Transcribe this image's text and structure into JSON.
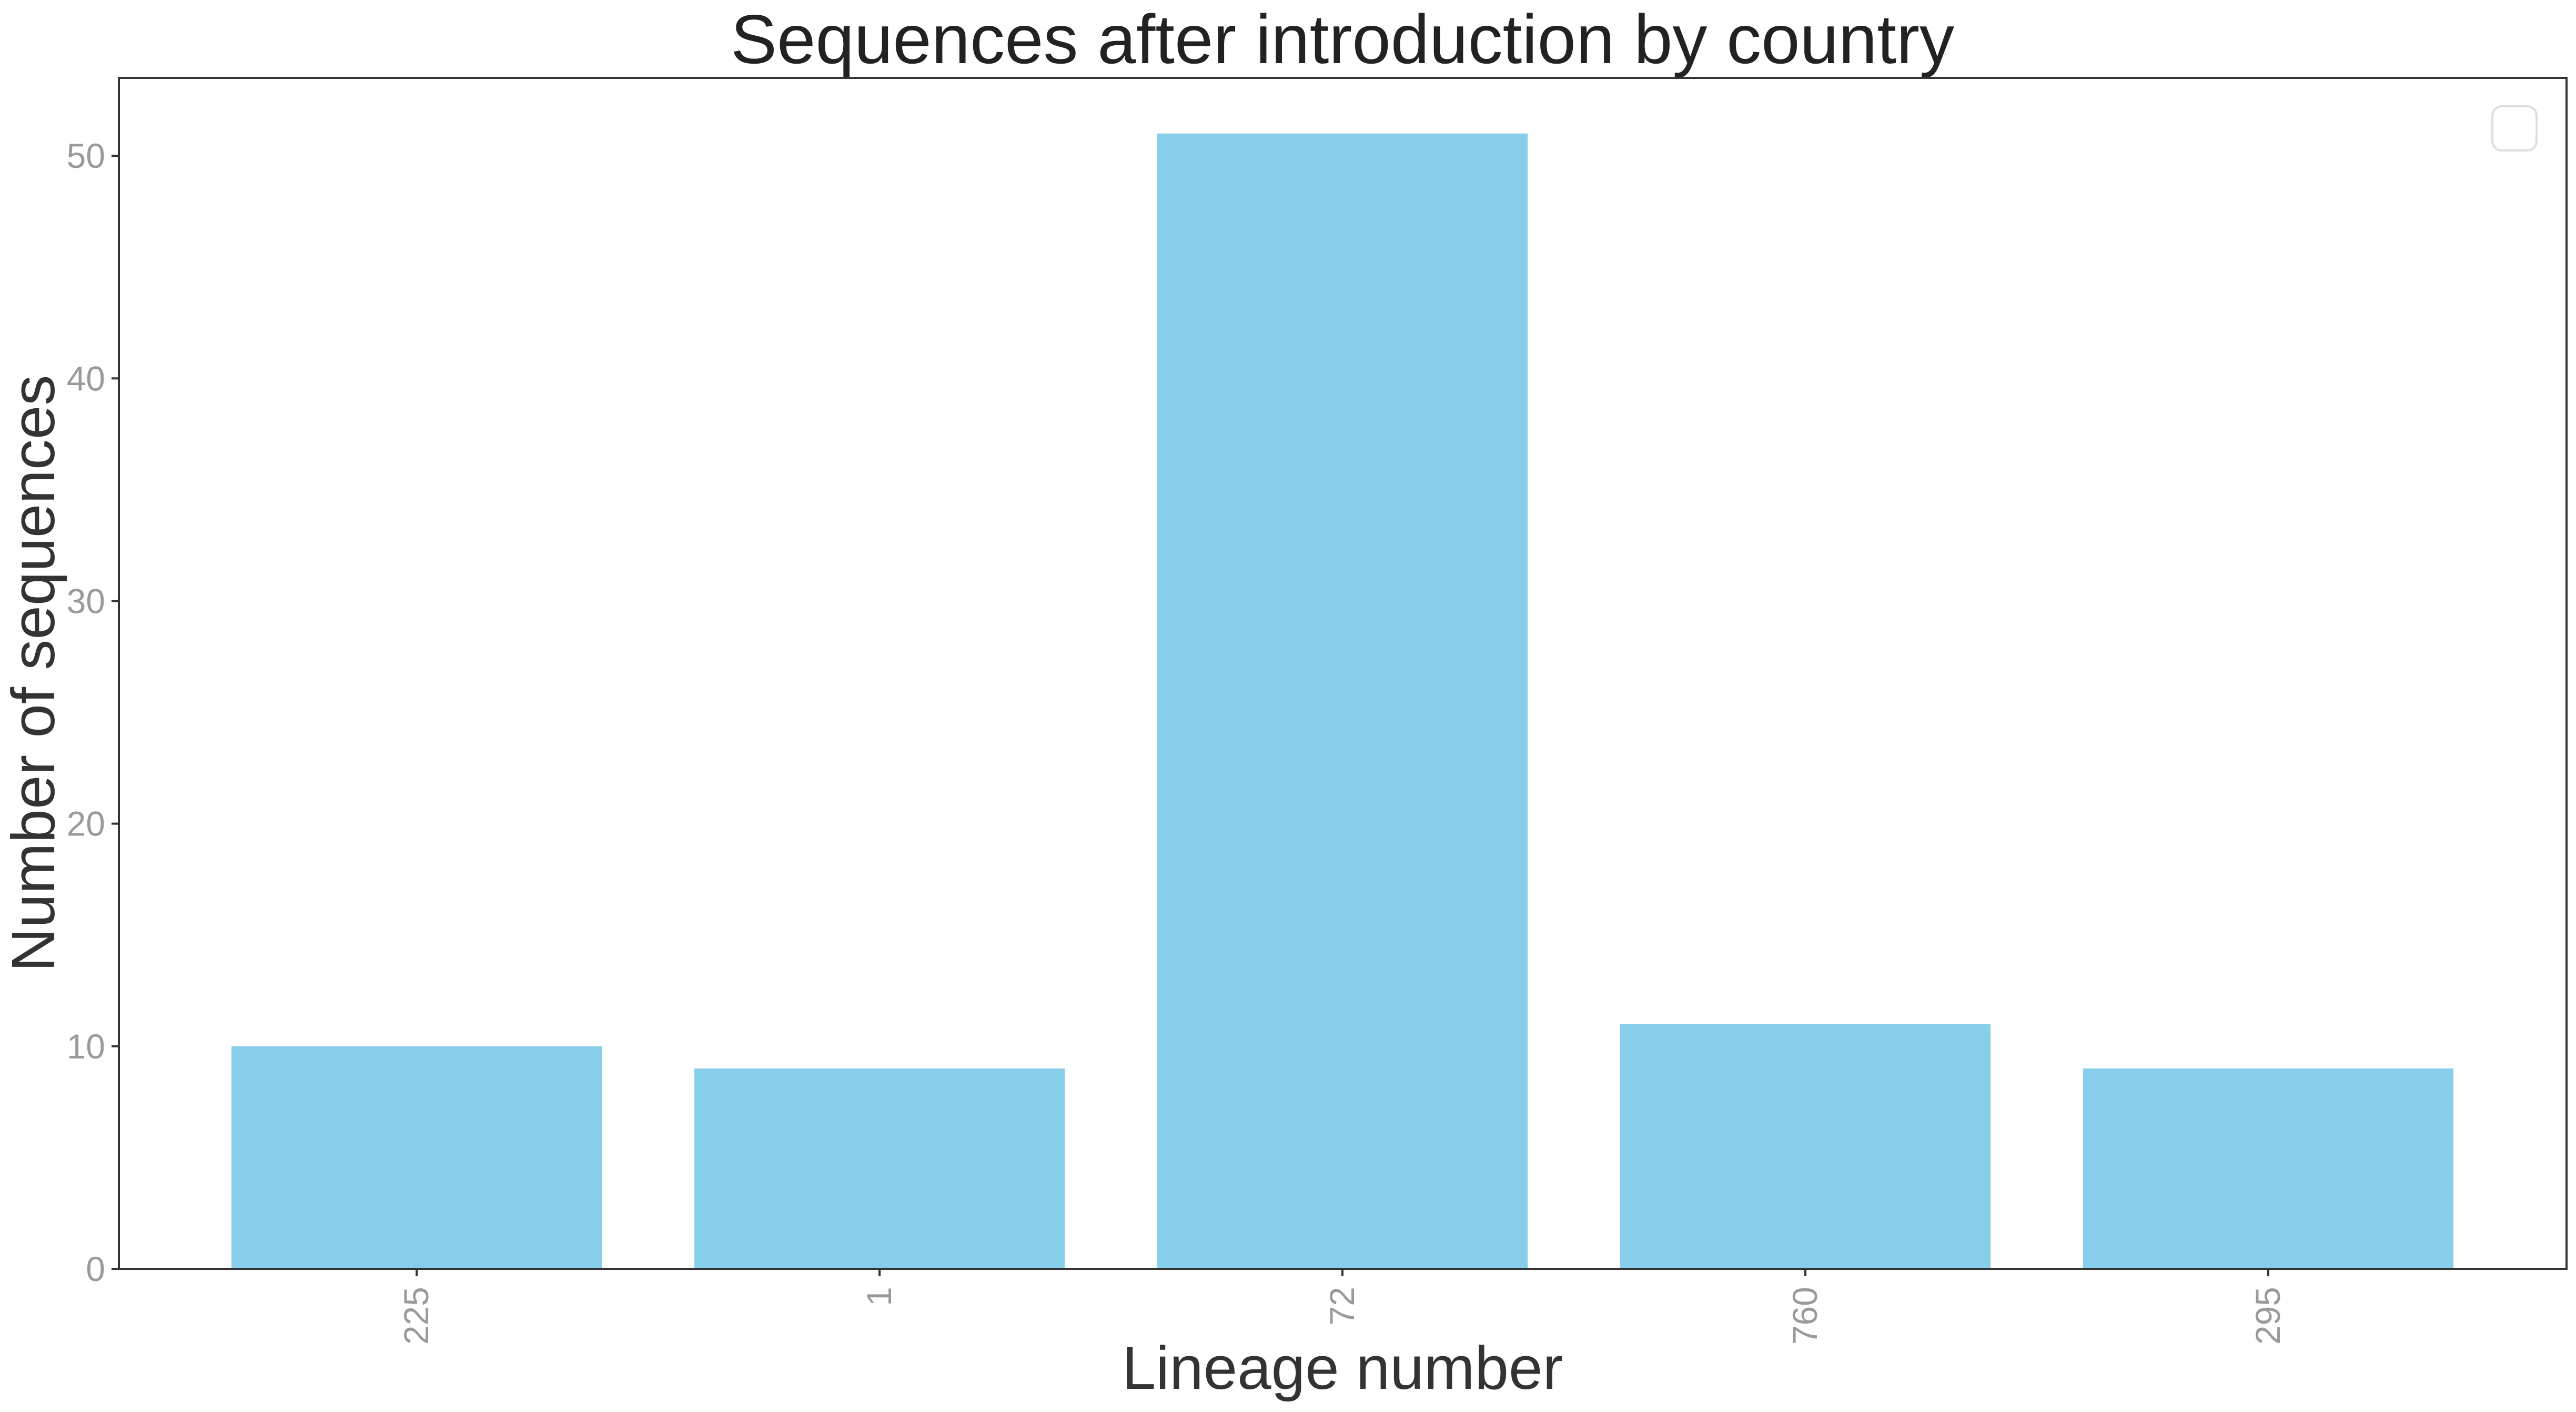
{
  "chart_data": {
    "type": "bar",
    "title": "Sequences after introduction by country",
    "xlabel": "Lineage number",
    "ylabel": "Number of sequences",
    "categories": [
      "225",
      "1",
      "72",
      "760",
      "295"
    ],
    "values": [
      10,
      9,
      51,
      11,
      9
    ],
    "ylim": [
      0,
      53.5
    ],
    "yticks": [
      0,
      10,
      20,
      30,
      40,
      50
    ],
    "bar_color": "#87CEEB",
    "grid": false,
    "legend": {
      "placement": "top-right",
      "entries": []
    }
  }
}
